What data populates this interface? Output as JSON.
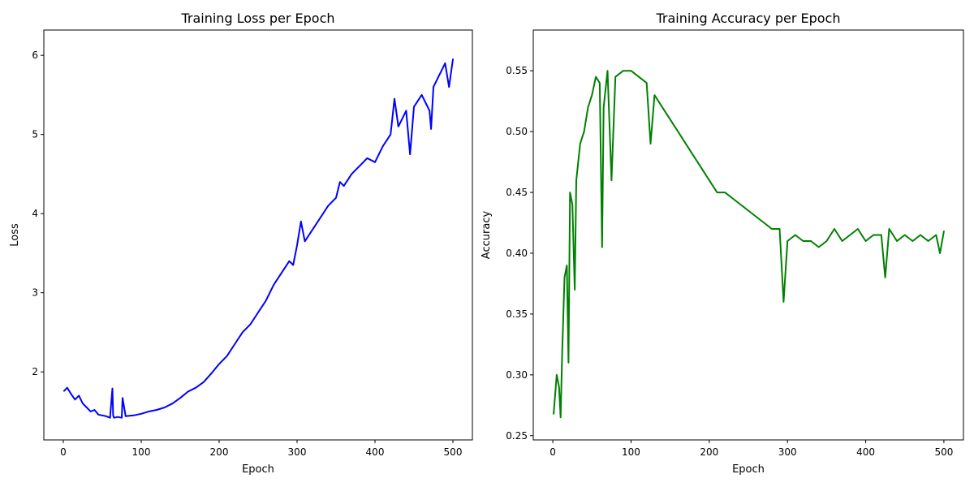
{
  "chart_data": [
    {
      "type": "line",
      "title": "Training Loss per Epoch",
      "xlabel": "Epoch",
      "ylabel": "Loss",
      "xlim": [
        -25,
        525
      ],
      "ylim": [
        1.14,
        6.32
      ],
      "xticks": [
        0,
        100,
        200,
        300,
        400,
        500
      ],
      "yticks": [
        2,
        3,
        4,
        5,
        6
      ],
      "tick_decimals": 0,
      "grid": false,
      "color": "#0000ff",
      "series": [
        {
          "x": [
            1,
            5,
            10,
            15,
            20,
            25,
            30,
            35,
            40,
            45,
            50,
            55,
            60,
            63,
            64,
            65,
            70,
            75,
            76,
            80,
            90,
            100,
            110,
            120,
            130,
            140,
            150,
            160,
            170,
            180,
            190,
            200,
            210,
            220,
            230,
            240,
            250,
            260,
            270,
            280,
            290,
            295,
            300,
            305,
            310,
            320,
            330,
            340,
            350,
            355,
            360,
            370,
            380,
            390,
            400,
            410,
            420,
            425,
            430,
            440,
            445,
            450,
            460,
            470,
            472,
            475,
            480,
            485,
            490,
            495,
            500
          ],
          "y": [
            1.76,
            1.8,
            1.72,
            1.65,
            1.7,
            1.6,
            1.55,
            1.5,
            1.52,
            1.46,
            1.45,
            1.44,
            1.42,
            1.79,
            1.45,
            1.42,
            1.43,
            1.42,
            1.67,
            1.44,
            1.45,
            1.47,
            1.5,
            1.52,
            1.55,
            1.6,
            1.67,
            1.75,
            1.8,
            1.87,
            1.98,
            2.1,
            2.2,
            2.35,
            2.5,
            2.6,
            2.75,
            2.9,
            3.1,
            3.25,
            3.4,
            3.35,
            3.6,
            3.9,
            3.65,
            3.8,
            3.95,
            4.1,
            4.2,
            4.4,
            4.35,
            4.5,
            4.6,
            4.7,
            4.65,
            4.85,
            5.0,
            5.45,
            5.1,
            5.3,
            4.75,
            5.35,
            5.5,
            5.3,
            5.07,
            5.6,
            5.7,
            5.8,
            5.9,
            5.6,
            5.95
          ]
        }
      ]
    },
    {
      "type": "line",
      "title": "Training Accuracy per Epoch",
      "xlabel": "Epoch",
      "ylabel": "Accuracy",
      "xlim": [
        -25,
        525
      ],
      "ylim": [
        0.2465,
        0.5835
      ],
      "xticks": [
        0,
        100,
        200,
        300,
        400,
        500
      ],
      "yticks": [
        0.25,
        0.3,
        0.35,
        0.4,
        0.45,
        0.5,
        0.55
      ],
      "tick_decimals": 2,
      "grid": false,
      "color": "#008000",
      "series": [
        {
          "x": [
            1,
            5,
            8,
            10,
            12,
            15,
            18,
            20,
            22,
            25,
            28,
            30,
            35,
            40,
            45,
            50,
            55,
            60,
            63,
            65,
            70,
            75,
            80,
            90,
            100,
            110,
            120,
            125,
            130,
            140,
            150,
            160,
            170,
            180,
            190,
            200,
            210,
            220,
            230,
            240,
            250,
            260,
            270,
            280,
            290,
            295,
            300,
            310,
            320,
            330,
            340,
            350,
            360,
            370,
            380,
            390,
            400,
            410,
            420,
            425,
            430,
            440,
            450,
            460,
            470,
            480,
            490,
            495,
            500
          ],
          "y": [
            0.268,
            0.3,
            0.29,
            0.265,
            0.32,
            0.38,
            0.39,
            0.31,
            0.45,
            0.44,
            0.37,
            0.46,
            0.49,
            0.5,
            0.52,
            0.53,
            0.545,
            0.54,
            0.405,
            0.52,
            0.55,
            0.46,
            0.545,
            0.55,
            0.55,
            0.545,
            0.54,
            0.49,
            0.53,
            0.52,
            0.51,
            0.5,
            0.49,
            0.48,
            0.47,
            0.46,
            0.45,
            0.45,
            0.445,
            0.44,
            0.435,
            0.43,
            0.425,
            0.42,
            0.42,
            0.36,
            0.41,
            0.415,
            0.41,
            0.41,
            0.405,
            0.41,
            0.42,
            0.41,
            0.415,
            0.42,
            0.41,
            0.415,
            0.415,
            0.38,
            0.42,
            0.41,
            0.415,
            0.41,
            0.415,
            0.41,
            0.415,
            0.4,
            0.418
          ]
        }
      ]
    }
  ]
}
